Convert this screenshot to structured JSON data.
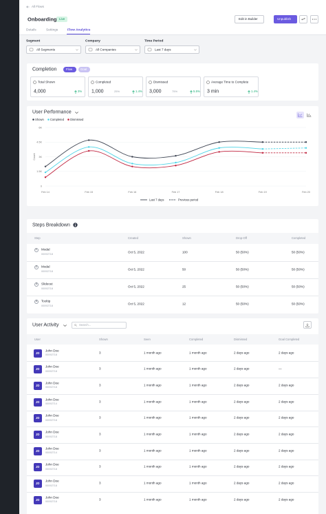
{
  "nav": {
    "back": "All Flows"
  },
  "header": {
    "title": "Onboarding",
    "status": "Live",
    "buttons": [
      "Edit in Builder",
      "Unpublish"
    ]
  },
  "tabs": [
    "Details",
    "Settings",
    "Flow Analytics"
  ],
  "filters": [
    {
      "label": "Segment",
      "value": "All Segments"
    },
    {
      "label": "Company",
      "value": "All Companies"
    },
    {
      "label": "Time Period",
      "value": "Last 7 days"
    }
  ],
  "completion": {
    "title": "Completion",
    "toggles": [
      "Flow",
      "Goal"
    ],
    "stats": [
      {
        "label": "Total Shown",
        "value": "4,000",
        "change": "3%"
      },
      {
        "label": "Completed",
        "value": "1,000",
        "share": "25%",
        "change": "1.4%"
      },
      {
        "label": "Dismissed",
        "value": "3,000",
        "share": "75%",
        "change": "5.5%"
      },
      {
        "label": "Average Time to Complete",
        "value": "3 min",
        "change": "1.4%"
      }
    ]
  },
  "performance": {
    "title": "User Performance",
    "type": "line",
    "y_label": "Count",
    "categories": [
      "Feb 14",
      "Feb 15",
      "Feb 16",
      "Feb 17",
      "Feb 18",
      "Feb 19",
      "Feb 20"
    ],
    "ylim": [
      0,
      6000
    ],
    "yticks": [
      0,
      {
        "value": 1500,
        "label": "1.5K"
      },
      {
        "value": 3000,
        "label": "3K"
      },
      {
        "value": 4500,
        "label": "4.5K"
      },
      {
        "value": 6000,
        "label": "6K"
      }
    ],
    "series": [
      {
        "name": "Shown",
        "color": "#3d4452",
        "values": [
          2000,
          4700,
          3000,
          3100,
          4500,
          4500,
          4500
        ]
      },
      {
        "name": "Completed",
        "color": "#4dd4e6",
        "values": [
          1400,
          4000,
          2300,
          2400,
          3900,
          3800,
          3900
        ]
      },
      {
        "name": "Dismissed",
        "color": "#c0243f",
        "values": [
          900,
          3600,
          2000,
          2100,
          3500,
          3400,
          3400
        ]
      }
    ],
    "periods": [
      "Last 7 days",
      "Previous period"
    ]
  },
  "steps": {
    "title": "Steps Breakdown",
    "columns": [
      "Step",
      "Created",
      "Shown",
      "Drop-Off",
      "Completed"
    ],
    "rows": [
      {
        "index": 1,
        "name": "Modal",
        "id": "00092718",
        "created": "Oct 5, 2022",
        "shown": 100,
        "drop_off": "50 (50%)",
        "completed": "50 (50%)"
      },
      {
        "index": 2,
        "name": "Modal",
        "id": "00092718",
        "created": "Oct 5, 2022",
        "shown": 50,
        "drop_off": "50 (50%)",
        "completed": "50 (50%)"
      },
      {
        "index": 3,
        "name": "Slideout",
        "id": "00092718",
        "created": "Oct 5, 2022",
        "shown": 25,
        "drop_off": "50 (50%)",
        "completed": "50 (50%)"
      },
      {
        "index": 4,
        "name": "Tooltip",
        "id": "00092718",
        "created": "Oct 5, 2022",
        "shown": 12,
        "drop_off": "50 (50%)",
        "completed": "50 (50%)"
      }
    ]
  },
  "activity": {
    "title": "User Activity",
    "search_placeholder": "Search...",
    "columns": [
      "User",
      "Shown",
      "Seen",
      "Completed",
      "Dismissed",
      "Goal Completed"
    ],
    "rows": [
      {
        "initials": "JD",
        "name": "John Doe",
        "id": "00092718",
        "shown": 3,
        "seen": "1 month ago",
        "completed": "1 month ago",
        "dismissed": "2 days ago",
        "goal_completed": "2 days ago"
      },
      {
        "initials": "JD",
        "name": "John Doe",
        "id": "00092718",
        "shown": 3,
        "seen": "1 month ago",
        "completed": "1 month ago",
        "dismissed": "2 days ago",
        "goal_completed": "—"
      },
      {
        "initials": "JD",
        "name": "John Doe",
        "id": "00092718",
        "shown": 3,
        "seen": "1 month ago",
        "completed": "1 month ago",
        "dismissed": "2 days ago",
        "goal_completed": "2 days ago"
      },
      {
        "initials": "JD",
        "name": "John Doe",
        "id": "00092714",
        "shown": 3,
        "seen": "1 month ago",
        "completed": "1 month ago",
        "dismissed": "2 days ago",
        "goal_completed": "2 days ago"
      },
      {
        "initials": "JD",
        "name": "John Doe",
        "id": "00092718",
        "shown": 3,
        "seen": "1 month ago",
        "completed": "1 month ago",
        "dismissed": "2 days ago",
        "goal_completed": "2 days ago"
      },
      {
        "initials": "JD",
        "name": "John Doe",
        "id": "00092718",
        "shown": 3,
        "seen": "1 month ago",
        "completed": "1 month ago",
        "dismissed": "2 days ago",
        "goal_completed": "2 days ago"
      },
      {
        "initials": "JD",
        "name": "John Doe",
        "id": "00092714",
        "shown": 3,
        "seen": "1 month ago",
        "completed": "1 month ago",
        "dismissed": "2 days ago",
        "goal_completed": "2 days ago"
      },
      {
        "initials": "JD",
        "name": "John Doe",
        "id": "00092718",
        "shown": 3,
        "seen": "1 month ago",
        "completed": "1 month ago",
        "dismissed": "2 days ago",
        "goal_completed": "2 days ago"
      },
      {
        "initials": "JD",
        "name": "John Doe",
        "id": "00092718",
        "shown": 3,
        "seen": "1 month ago",
        "completed": "1 month ago",
        "dismissed": "2 days ago",
        "goal_completed": "2 days ago"
      },
      {
        "initials": "JD",
        "name": "John Doe",
        "id": "00092718",
        "shown": 3,
        "seen": "1 month ago",
        "completed": "1 month ago",
        "dismissed": "2 days ago",
        "goal_completed": "2 days ago"
      }
    ]
  }
}
